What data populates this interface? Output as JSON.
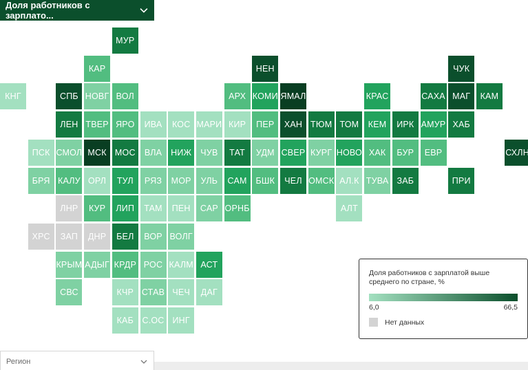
{
  "header": {
    "select_label": "Доля работников с зарплато..."
  },
  "legend": {
    "title": "Доля работников с зарплатой выше среднего по стране, %",
    "min_label": "6,0",
    "max_label": "66,5",
    "no_data_label": "Нет данных",
    "color_low": "#a3e0c0",
    "color_high": "#0b4f2c",
    "no_data_color": "#d3d3d3"
  },
  "footer": {
    "select_label": "Регион"
  },
  "icons": {
    "dropdown": "chevron-down-icon"
  },
  "map": {
    "grid_columns": 19,
    "grid_rows": 12,
    "tiles": [
      {
        "label": "МУР",
        "col": 4,
        "row": 0,
        "level": 5
      },
      {
        "label": "КАР",
        "col": 3,
        "row": 1,
        "level": 3
      },
      {
        "label": "НЕН",
        "col": 9,
        "row": 1,
        "level": 6
      },
      {
        "label": "ЧУК",
        "col": 16,
        "row": 1,
        "level": 6
      },
      {
        "label": "КНГ",
        "col": 0,
        "row": 2,
        "level": 1
      },
      {
        "label": "СПБ",
        "col": 2,
        "row": 2,
        "level": 6
      },
      {
        "label": "НОВГ",
        "col": 3,
        "row": 2,
        "level": 2
      },
      {
        "label": "ВОЛ",
        "col": 4,
        "row": 2,
        "level": 3
      },
      {
        "label": "АРХ",
        "col": 8,
        "row": 2,
        "level": 3
      },
      {
        "label": "КОМИ",
        "col": 9,
        "row": 2,
        "level": 4
      },
      {
        "label": "ЯМАЛ",
        "col": 10,
        "row": 2,
        "level": 7
      },
      {
        "label": "КРАС",
        "col": 13,
        "row": 2,
        "level": 4
      },
      {
        "label": "САХА",
        "col": 15,
        "row": 2,
        "level": 5
      },
      {
        "label": "МАГ",
        "col": 16,
        "row": 2,
        "level": 6
      },
      {
        "label": "КАМ",
        "col": 17,
        "row": 2,
        "level": 5
      },
      {
        "label": "ЛЕН",
        "col": 2,
        "row": 3,
        "level": 5
      },
      {
        "label": "ТВЕР",
        "col": 3,
        "row": 3,
        "level": 3
      },
      {
        "label": "ЯРО",
        "col": 4,
        "row": 3,
        "level": 3
      },
      {
        "label": "ИВА",
        "col": 5,
        "row": 3,
        "level": 1
      },
      {
        "label": "КОС",
        "col": 6,
        "row": 3,
        "level": 1
      },
      {
        "label": "МАРИ",
        "col": 7,
        "row": 3,
        "level": 1
      },
      {
        "label": "КИР",
        "col": 8,
        "row": 3,
        "level": 1
      },
      {
        "label": "ПЕР",
        "col": 9,
        "row": 3,
        "level": 3
      },
      {
        "label": "ХАН",
        "col": 10,
        "row": 3,
        "level": 6
      },
      {
        "label": "ТЮМ",
        "col": 11,
        "row": 3,
        "level": 5
      },
      {
        "label": "ТОМ",
        "col": 12,
        "row": 3,
        "level": 5
      },
      {
        "label": "КЕМ",
        "col": 13,
        "row": 3,
        "level": 4
      },
      {
        "label": "ИРК",
        "col": 14,
        "row": 3,
        "level": 5
      },
      {
        "label": "АМУР",
        "col": 15,
        "row": 3,
        "level": 4
      },
      {
        "label": "ХАБ",
        "col": 16,
        "row": 3,
        "level": 5
      },
      {
        "label": "ПСК",
        "col": 1,
        "row": 4,
        "level": 1
      },
      {
        "label": "СМОЛ",
        "col": 2,
        "row": 4,
        "level": 2
      },
      {
        "label": "МСК",
        "col": 3,
        "row": 4,
        "level": 7
      },
      {
        "label": "МОС",
        "col": 4,
        "row": 4,
        "level": 5
      },
      {
        "label": "ВЛА",
        "col": 5,
        "row": 4,
        "level": 2
      },
      {
        "label": "НИЖ",
        "col": 6,
        "row": 4,
        "level": 4
      },
      {
        "label": "ЧУВ",
        "col": 7,
        "row": 4,
        "level": 2
      },
      {
        "label": "ТАТ",
        "col": 8,
        "row": 4,
        "level": 5
      },
      {
        "label": "УДМ",
        "col": 9,
        "row": 4,
        "level": 2
      },
      {
        "label": "СВЕР",
        "col": 10,
        "row": 4,
        "level": 4
      },
      {
        "label": "КУРГ",
        "col": 11,
        "row": 4,
        "level": 2
      },
      {
        "label": "НОВО",
        "col": 12,
        "row": 4,
        "level": 4
      },
      {
        "label": "ХАК",
        "col": 13,
        "row": 4,
        "level": 3
      },
      {
        "label": "БУР",
        "col": 14,
        "row": 4,
        "level": 3
      },
      {
        "label": "ЕВР",
        "col": 15,
        "row": 4,
        "level": 3
      },
      {
        "label": "СХЛН",
        "col": 18,
        "row": 4,
        "level": 6
      },
      {
        "label": "БРЯ",
        "col": 1,
        "row": 5,
        "level": 2
      },
      {
        "label": "КАЛУ",
        "col": 2,
        "row": 5,
        "level": 3
      },
      {
        "label": "ОРЛ",
        "col": 3,
        "row": 5,
        "level": 1
      },
      {
        "label": "ТУЛ",
        "col": 4,
        "row": 5,
        "level": 4
      },
      {
        "label": "РЯЗ",
        "col": 5,
        "row": 5,
        "level": 2
      },
      {
        "label": "МОР",
        "col": 6,
        "row": 5,
        "level": 2
      },
      {
        "label": "УЛЬ",
        "col": 7,
        "row": 5,
        "level": 2
      },
      {
        "label": "САМ",
        "col": 8,
        "row": 5,
        "level": 4
      },
      {
        "label": "БШК",
        "col": 9,
        "row": 5,
        "level": 3
      },
      {
        "label": "ЧЕЛ",
        "col": 10,
        "row": 5,
        "level": 5
      },
      {
        "label": "ОМСК",
        "col": 11,
        "row": 5,
        "level": 3
      },
      {
        "label": "АЛ.К",
        "col": 12,
        "row": 5,
        "level": 1
      },
      {
        "label": "ТУВА",
        "col": 13,
        "row": 5,
        "level": 2
      },
      {
        "label": "ЗАБ",
        "col": 14,
        "row": 5,
        "level": 5
      },
      {
        "label": "ПРИ",
        "col": 16,
        "row": 5,
        "level": 5
      },
      {
        "label": "ЛНР",
        "col": 2,
        "row": 6,
        "level": 0
      },
      {
        "label": "КУР",
        "col": 3,
        "row": 6,
        "level": 3
      },
      {
        "label": "ЛИП",
        "col": 4,
        "row": 6,
        "level": 4
      },
      {
        "label": "ТАМ",
        "col": 5,
        "row": 6,
        "level": 1
      },
      {
        "label": "ПЕН",
        "col": 6,
        "row": 6,
        "level": 1
      },
      {
        "label": "САР",
        "col": 7,
        "row": 6,
        "level": 2
      },
      {
        "label": "ОРНБ",
        "col": 8,
        "row": 6,
        "level": 3
      },
      {
        "label": "АЛТ",
        "col": 12,
        "row": 6,
        "level": 1
      },
      {
        "label": "ХРС",
        "col": 1,
        "row": 7,
        "level": 0
      },
      {
        "label": "ЗАП",
        "col": 2,
        "row": 7,
        "level": 0
      },
      {
        "label": "ДНР",
        "col": 3,
        "row": 7,
        "level": 0
      },
      {
        "label": "БЕЛ",
        "col": 4,
        "row": 7,
        "level": 5
      },
      {
        "label": "ВОР",
        "col": 5,
        "row": 7,
        "level": 2
      },
      {
        "label": "ВОЛГ",
        "col": 6,
        "row": 7,
        "level": 2
      },
      {
        "label": "КРЫМ",
        "col": 2,
        "row": 8,
        "level": 2
      },
      {
        "label": "АДЫГ",
        "col": 3,
        "row": 8,
        "level": 2
      },
      {
        "label": "КРДР",
        "col": 4,
        "row": 8,
        "level": 3
      },
      {
        "label": "РОС",
        "col": 5,
        "row": 8,
        "level": 2
      },
      {
        "label": "КАЛМ",
        "col": 6,
        "row": 8,
        "level": 1
      },
      {
        "label": "АСТ",
        "col": 7,
        "row": 8,
        "level": 4
      },
      {
        "label": "СВС",
        "col": 2,
        "row": 9,
        "level": 2
      },
      {
        "label": "КЧР",
        "col": 4,
        "row": 9,
        "level": 1
      },
      {
        "label": "СТАВ",
        "col": 5,
        "row": 9,
        "level": 2
      },
      {
        "label": "ЧЕЧ",
        "col": 6,
        "row": 9,
        "level": 1
      },
      {
        "label": "ДАГ",
        "col": 7,
        "row": 9,
        "level": 1
      },
      {
        "label": "КАБ",
        "col": 4,
        "row": 10,
        "level": 1
      },
      {
        "label": "С.ОС",
        "col": 5,
        "row": 10,
        "level": 1
      },
      {
        "label": "ИНГ",
        "col": 6,
        "row": 10,
        "level": 1
      }
    ]
  }
}
